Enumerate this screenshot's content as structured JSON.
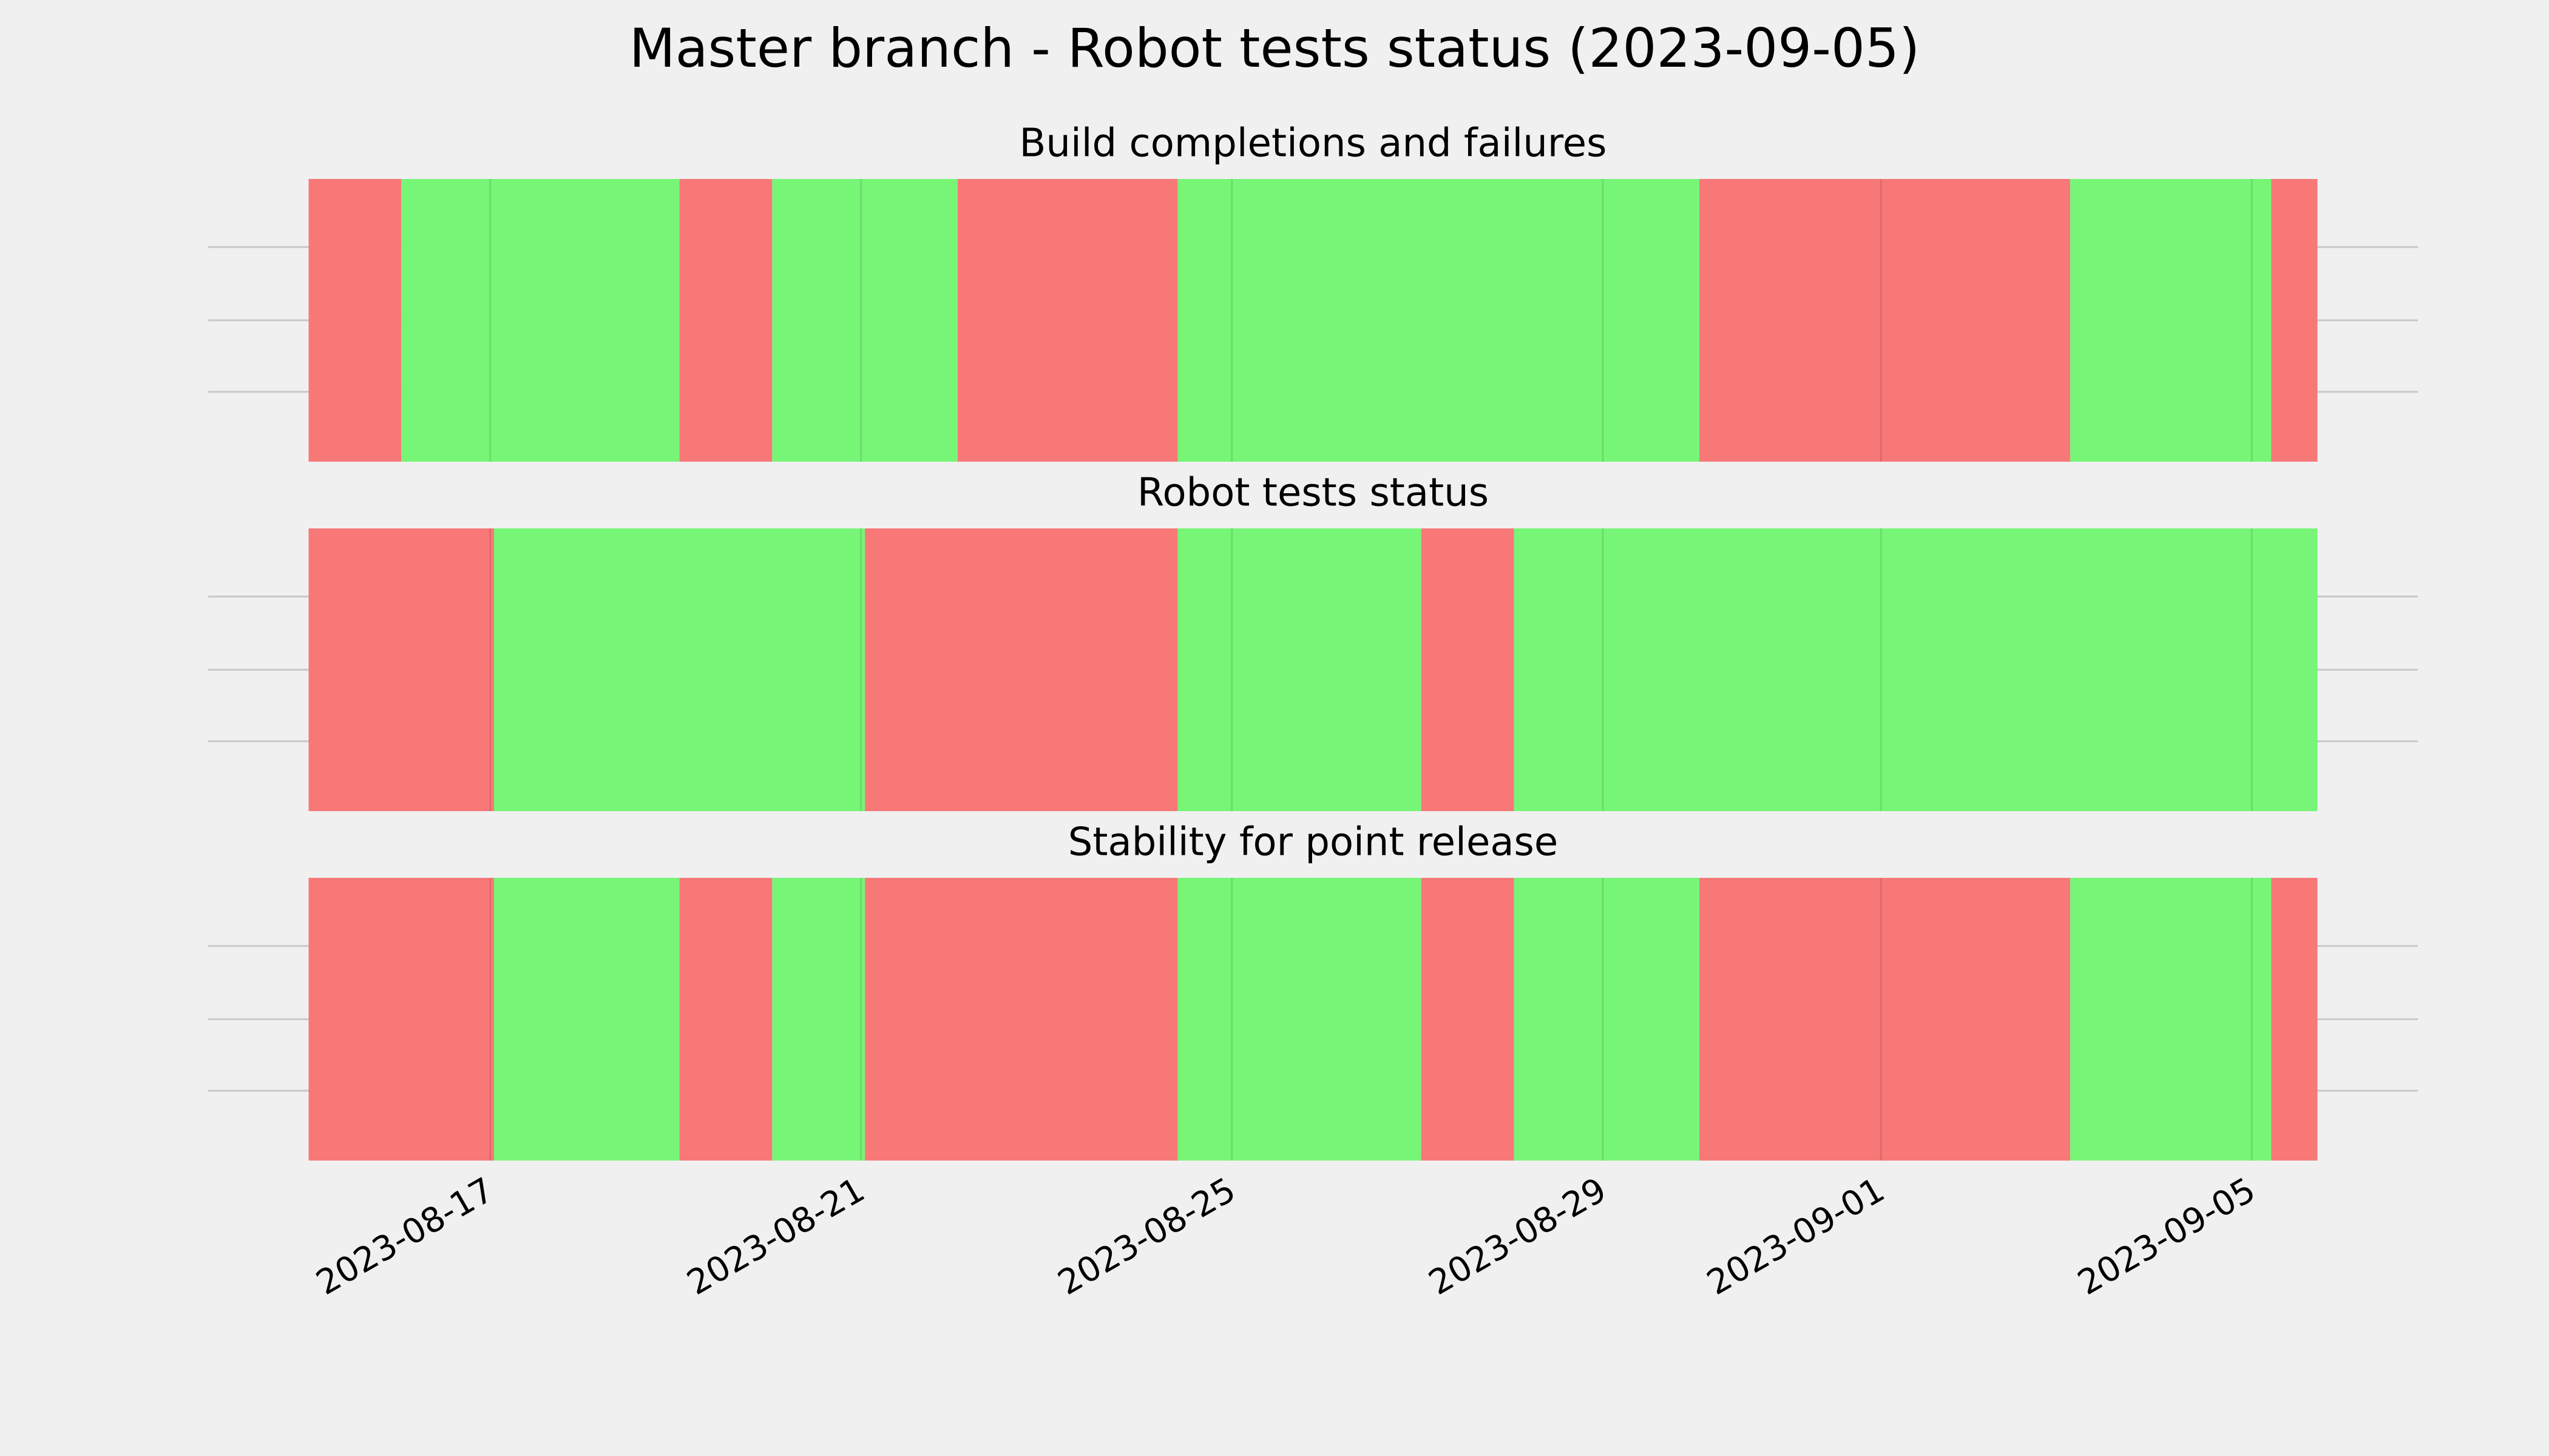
{
  "title": "Master branch - Robot tests status (2023-09-05)",
  "chart_data": [
    {
      "type": "timeline",
      "title": "Build completions and failures",
      "x": [
        "2023-08-15 01:00",
        "2023-08-16 01:00",
        "2023-08-19 01:00",
        "2023-08-20 01:00",
        "2023-08-22 01:00",
        "2023-08-24 10:00",
        "2023-08-30 01:00",
        "2023-09-03 01:00",
        "2023-09-05 05:00",
        "2023-09-05 17:00"
      ],
      "colors": [
        "#f87878",
        "#77f577",
        "#f87878",
        "#77f577",
        "#f87878",
        "#77f577",
        "#f87878",
        "#77f577",
        "#f87878"
      ]
    },
    {
      "type": "timeline",
      "title": "Robot tests status",
      "x": [
        "2023-08-15 01:00",
        "2023-08-17 01:00",
        "2023-08-21 01:00",
        "2023-08-24 10:00",
        "2023-08-27 01:00",
        "2023-08-28 01:00",
        "2023-09-05 17:00"
      ],
      "colors": [
        "#f87878",
        "#77f577",
        "#f87878",
        "#77f577",
        "#f87878",
        "#77f577"
      ]
    },
    {
      "type": "timeline",
      "title": "Stability for point release",
      "x": [
        "2023-08-15 01:00",
        "2023-08-17 01:00",
        "2023-08-19 01:00",
        "2023-08-20 01:00",
        "2023-08-21 01:00",
        "2023-08-24 10:00",
        "2023-08-27 01:00",
        "2023-08-28 01:00",
        "2023-08-30 01:00",
        "2023-09-03 01:00",
        "2023-09-05 05:00",
        "2023-09-05 17:00"
      ],
      "colors": [
        "#f87878",
        "#77f577",
        "#f87878",
        "#77f577",
        "#f87878",
        "#77f577",
        "#f87878",
        "#77f577",
        "#f87878",
        "#77f577",
        "#f87878"
      ],
      "xlim": [
        "2023-08-13 23:00",
        "2023-09-06 19:00"
      ],
      "xticks": [
        "2023-08-17",
        "2023-08-21",
        "2023-08-25",
        "2023-08-29",
        "2023-09-01",
        "2023-09-05"
      ]
    }
  ]
}
